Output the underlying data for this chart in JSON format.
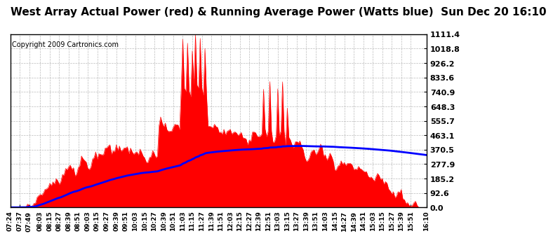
{
  "title": "West Array Actual Power (red) & Running Average Power (Watts blue)  Sun Dec 20 16:10",
  "copyright": "Copyright 2009 Cartronics.com",
  "yticks": [
    0.0,
    92.6,
    185.2,
    277.9,
    370.5,
    463.1,
    555.7,
    648.3,
    740.9,
    833.6,
    926.2,
    1018.8,
    1111.4
  ],
  "ymax": 1111.4,
  "ymin": 0.0,
  "actual_color": "#FF0000",
  "average_color": "#0000FF",
  "bg_color": "#FFFFFF",
  "grid_color": "#AAAAAA",
  "title_fontsize": 11,
  "copyright_fontsize": 7,
  "tick_fontsize": 8,
  "xtick_labels": [
    "07:24",
    "07:37",
    "07:49",
    "08:03",
    "08:15",
    "08:27",
    "08:39",
    "08:51",
    "09:03",
    "09:15",
    "09:27",
    "09:39",
    "09:51",
    "10:03",
    "10:15",
    "10:27",
    "10:39",
    "10:51",
    "11:03",
    "11:15",
    "11:27",
    "11:39",
    "11:51",
    "12:03",
    "12:15",
    "12:27",
    "12:39",
    "12:51",
    "13:03",
    "13:15",
    "13:27",
    "13:39",
    "13:51",
    "14:03",
    "14:15",
    "14:27",
    "14:39",
    "14:51",
    "15:03",
    "15:15",
    "15:27",
    "15:39",
    "15:51",
    "16:10"
  ]
}
